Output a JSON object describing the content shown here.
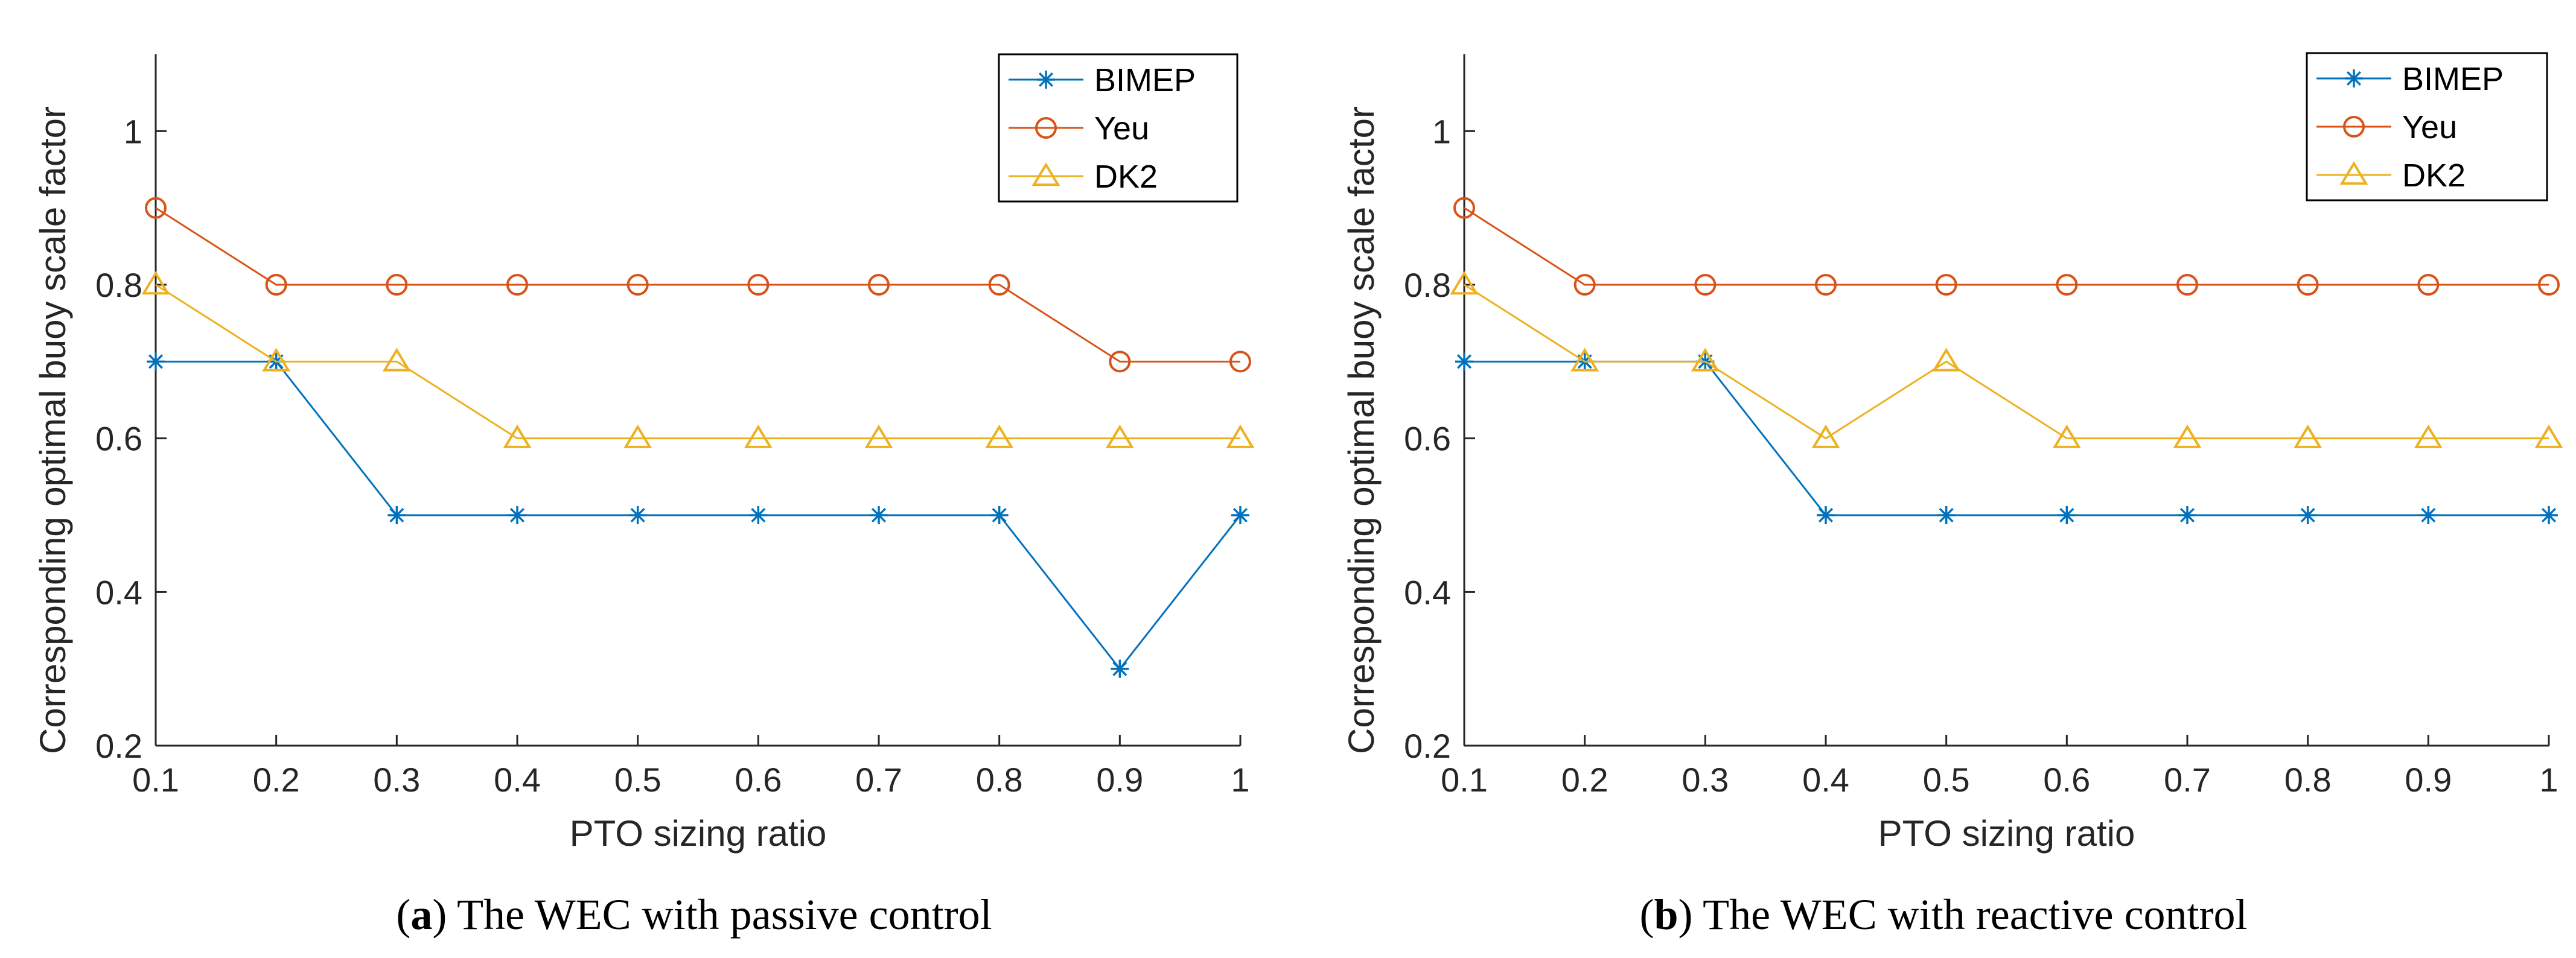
{
  "colors": {
    "BIMEP": "#0072BD",
    "Yeu": "#D95319",
    "DK2": "#EDB120",
    "axis": "#262626"
  },
  "chart_data": [
    {
      "type": "line",
      "panel": "a",
      "caption_label": "a",
      "caption_text": "The WEC with passive control",
      "xlabel": "PTO sizing ratio",
      "ylabel": "Corresponding optimal buoy scale factor",
      "x": [
        0.1,
        0.2,
        0.3,
        0.4,
        0.5,
        0.6,
        0.7,
        0.8,
        0.9,
        1
      ],
      "xticks": [
        "0.1",
        "0.2",
        "0.3",
        "0.4",
        "0.5",
        "0.6",
        "0.7",
        "0.8",
        "0.9",
        "1"
      ],
      "yticks": [
        "0.2",
        "0.4",
        "0.6",
        "0.8",
        "1"
      ],
      "xlim": [
        0.1,
        1
      ],
      "ylim": [
        0.2,
        1.1
      ],
      "legend_position": "top-right",
      "series": [
        {
          "name": "BIMEP",
          "marker": "asterisk",
          "values": [
            0.7,
            0.7,
            0.5,
            0.5,
            0.5,
            0.5,
            0.5,
            0.5,
            0.3,
            0.5
          ]
        },
        {
          "name": "Yeu",
          "marker": "circle",
          "values": [
            0.9,
            0.8,
            0.8,
            0.8,
            0.8,
            0.8,
            0.8,
            0.8,
            0.7,
            0.7
          ]
        },
        {
          "name": "DK2",
          "marker": "triangle",
          "values": [
            0.8,
            0.7,
            0.7,
            0.6,
            0.6,
            0.6,
            0.6,
            0.6,
            0.6,
            0.6
          ]
        }
      ]
    },
    {
      "type": "line",
      "panel": "b",
      "caption_label": "b",
      "caption_text": "The WEC with reactive control",
      "xlabel": "PTO sizing ratio",
      "ylabel": "Corresponding optimal buoy scale factor",
      "x": [
        0.1,
        0.2,
        0.3,
        0.4,
        0.5,
        0.6,
        0.7,
        0.8,
        0.9,
        1
      ],
      "xticks": [
        "0.1",
        "0.2",
        "0.3",
        "0.4",
        "0.5",
        "0.6",
        "0.7",
        "0.8",
        "0.9",
        "1"
      ],
      "yticks": [
        "0.2",
        "0.4",
        "0.6",
        "0.8",
        "1"
      ],
      "xlim": [
        0.1,
        1
      ],
      "ylim": [
        0.2,
        1.1
      ],
      "legend_position": "top-right",
      "series": [
        {
          "name": "BIMEP",
          "marker": "asterisk",
          "values": [
            0.7,
            0.7,
            0.7,
            0.5,
            0.5,
            0.5,
            0.5,
            0.5,
            0.5,
            0.5
          ]
        },
        {
          "name": "Yeu",
          "marker": "circle",
          "values": [
            0.9,
            0.8,
            0.8,
            0.8,
            0.8,
            0.8,
            0.8,
            0.8,
            0.8,
            0.8
          ]
        },
        {
          "name": "DK2",
          "marker": "triangle",
          "values": [
            0.8,
            0.7,
            0.7,
            0.6,
            0.7,
            0.6,
            0.6,
            0.6,
            0.6,
            0.6
          ]
        }
      ]
    }
  ]
}
